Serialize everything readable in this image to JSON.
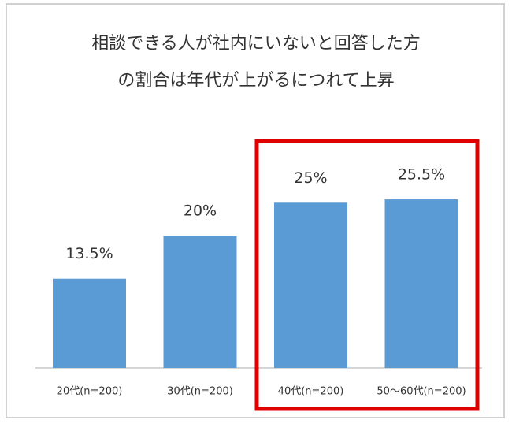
{
  "chart_data": {
    "type": "bar",
    "title": [
      "相談できる人が社内にいないと回答した方",
      "の割合は年代が上がるにつれて上昇"
    ],
    "categories": [
      "20代(n=200)",
      "30代(n=200)",
      "40代(n=200)",
      "50～60代(n=200)"
    ],
    "values": [
      13.5,
      20,
      25,
      25.5
    ],
    "value_labels": [
      "13.5%",
      "20%",
      "25%",
      "25.5%"
    ],
    "color": "#5b9bd5"
  }
}
